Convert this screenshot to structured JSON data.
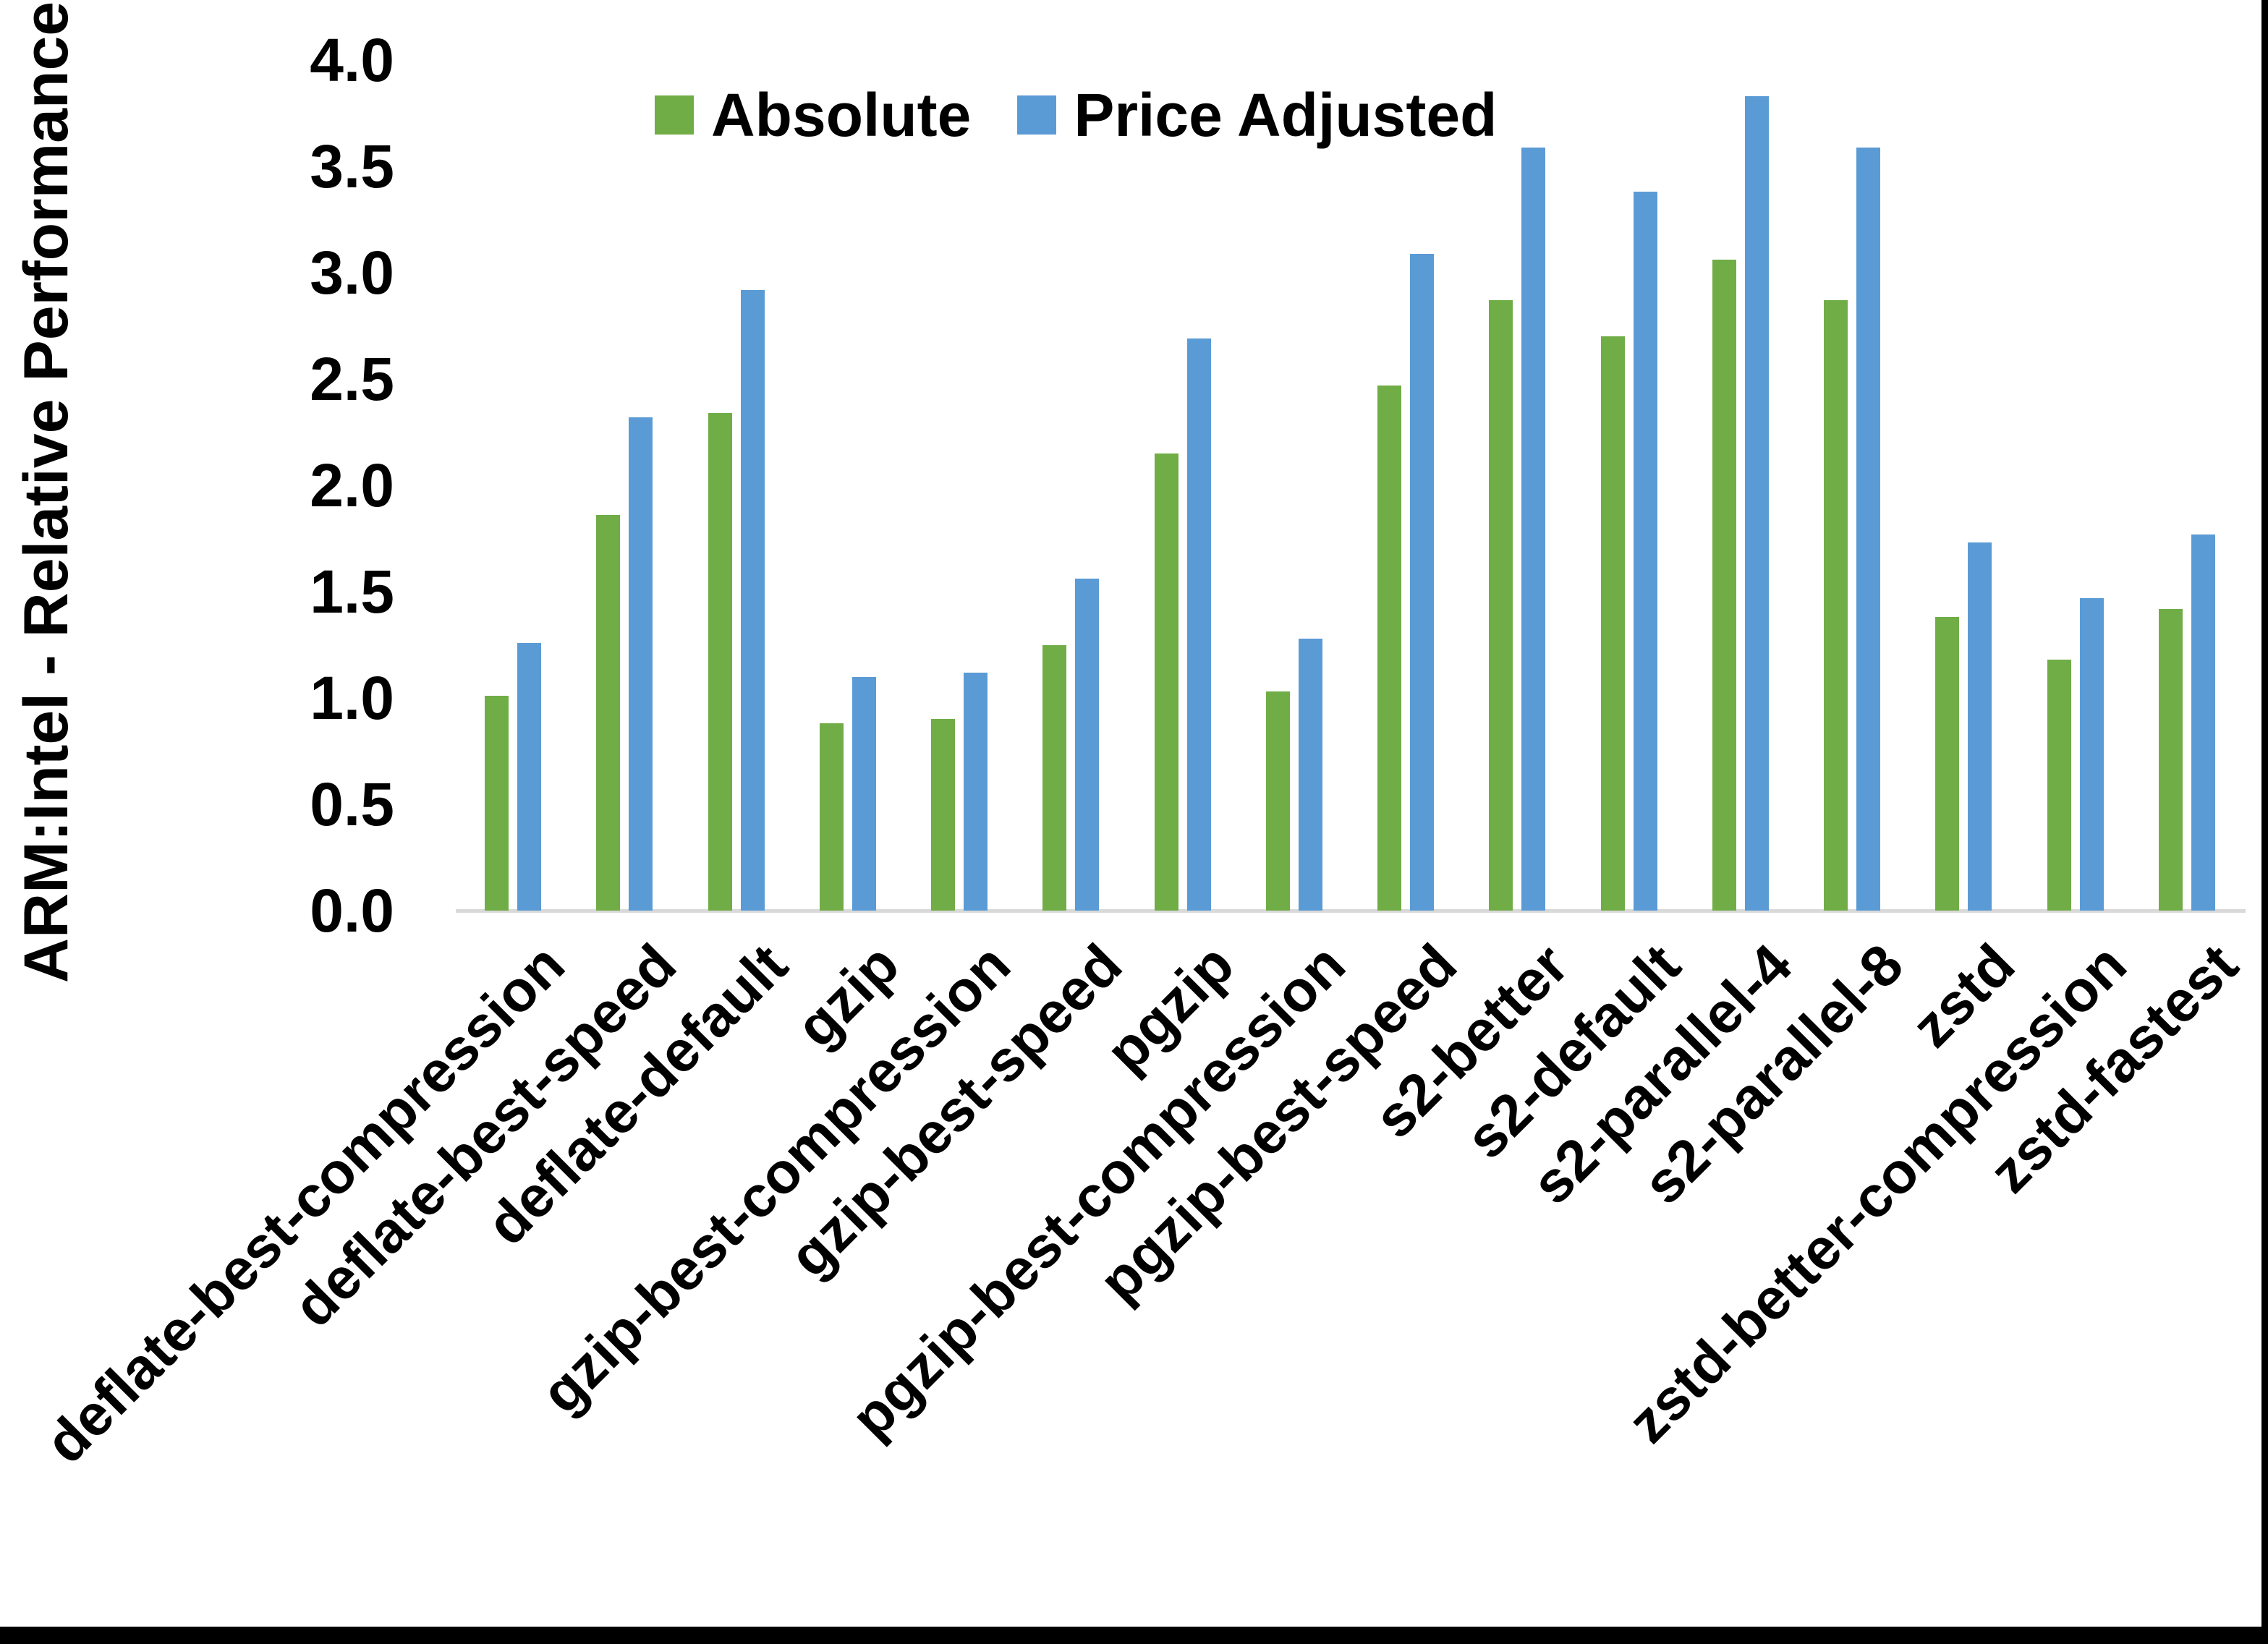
{
  "chart_data": {
    "type": "bar",
    "title": "",
    "ylabel": "ARM:Intel - Relative Performance",
    "xlabel": "",
    "ylim": [
      0.0,
      4.0
    ],
    "ytick_step": 0.5,
    "ytick_labels": [
      "0.0",
      "0.5",
      "1.0",
      "1.5",
      "2.0",
      "2.5",
      "3.0",
      "3.5",
      "4.0"
    ],
    "grid": false,
    "legend_position": "top-center",
    "categories": [
      "deflate-best-compression",
      "deflate-best-speed",
      "deflate-default",
      "gzip",
      "gzip-best-compression",
      "gzip-best-speed",
      "pgzip",
      "pgzip-best-compression",
      "pgzip-best-speed",
      "s2-better",
      "s2-default",
      "s2-parallel-4",
      "s2-parallel-8",
      "zstd",
      "zstd-better-compression",
      "zstd-fastest"
    ],
    "series": [
      {
        "name": "Absolute",
        "color": "#70AD47",
        "values": [
          1.01,
          1.86,
          2.34,
          0.88,
          0.9,
          1.25,
          2.15,
          1.03,
          2.47,
          2.87,
          2.7,
          3.06,
          2.87,
          1.38,
          1.18,
          1.42
        ]
      },
      {
        "name": "Price Adjusted",
        "color": "#5B9BD5",
        "values": [
          1.26,
          2.32,
          2.92,
          1.1,
          1.12,
          1.56,
          2.69,
          1.28,
          3.09,
          3.59,
          3.38,
          3.83,
          3.59,
          1.73,
          1.47,
          1.77
        ]
      }
    ]
  },
  "colors": {
    "background": "#FFFFFF",
    "axis_line": "#D9D9D9",
    "text": "#000000",
    "border": "#000000"
  }
}
